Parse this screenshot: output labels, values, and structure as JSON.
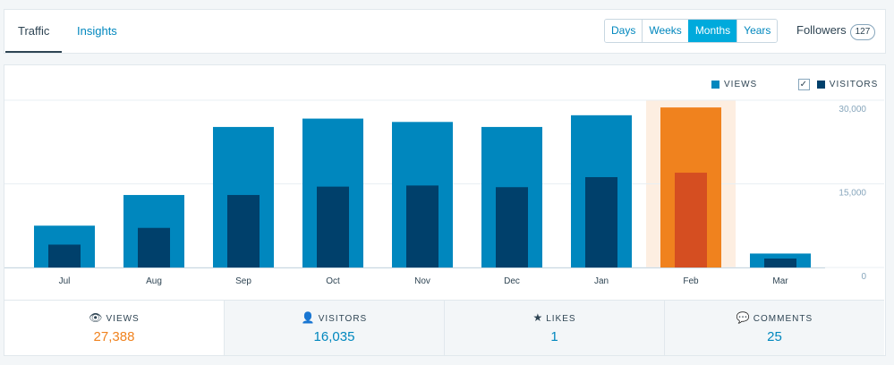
{
  "tabs": [
    {
      "label": "Traffic"
    },
    {
      "label": "Insights"
    }
  ],
  "periods": [
    {
      "label": "Days"
    },
    {
      "label": "Weeks"
    },
    {
      "label": "Months"
    },
    {
      "label": "Years"
    }
  ],
  "selected_period": "Months",
  "followers": {
    "label": "Followers",
    "count": "127"
  },
  "legend": {
    "views": "VIEWS",
    "visitors": "VISITORS",
    "visitors_checked": true
  },
  "colors": {
    "views": "#0087be",
    "visitors": "#00406b",
    "highlight_views": "#f0821e",
    "highlight_visitors": "#d54e21",
    "highlight_bg": "#fdeee1",
    "grid": "#e9eff3"
  },
  "chart_data": {
    "type": "bar",
    "categories": [
      "Jul",
      "Aug",
      "Sep",
      "Oct",
      "Nov",
      "Dec",
      "Jan",
      "Feb",
      "Mar"
    ],
    "series": [
      {
        "name": "VIEWS",
        "values": [
          7500,
          13000,
          25200,
          26700,
          26100,
          25200,
          27300,
          28700,
          2500
        ]
      },
      {
        "name": "VISITORS",
        "values": [
          4100,
          7100,
          13000,
          14500,
          14700,
          14400,
          16200,
          17000,
          1600
        ]
      }
    ],
    "highlight_category": "Feb",
    "yticks": [
      "0",
      "15,000",
      "30,000"
    ],
    "ylim": [
      0,
      30000
    ],
    "legend_position": "top-right",
    "grid": true
  },
  "stats": [
    {
      "icon": "eye-icon",
      "glyph": "👁",
      "label": "VIEWS",
      "value": "27,388"
    },
    {
      "icon": "person-icon",
      "glyph": "👤",
      "label": "VISITORS",
      "value": "16,035"
    },
    {
      "icon": "star-icon",
      "glyph": "★",
      "label": "LIKES",
      "value": "1"
    },
    {
      "icon": "comment-icon",
      "glyph": "💬",
      "label": "COMMENTS",
      "value": "25"
    }
  ]
}
